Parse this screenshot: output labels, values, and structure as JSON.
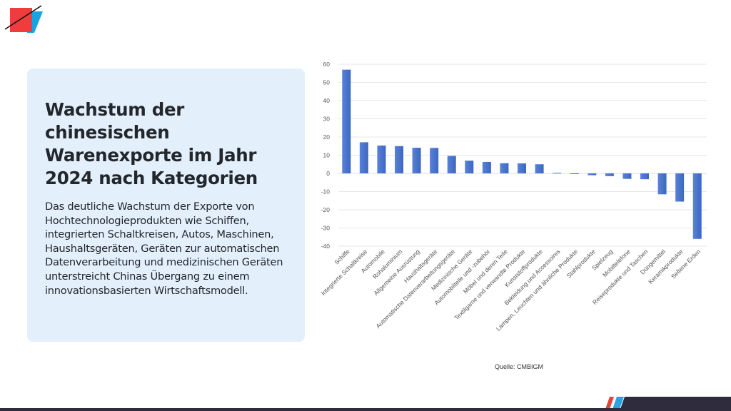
{
  "slide": {
    "title": "Wachstum der chinesischen Warenexporte im Jahr 2024 nach Kategorien",
    "description": "Das deutliche Wachstum der Exporte von Hochtechnologieprodukten wie Schiffen, integrierten Schaltkreisen, Autos, Maschinen, Haushaltsgeräten, Geräten zur automatischen Datenverarbeitung und medizinischen Geräten unterstreicht Chinas Übergang zu einem innovationsbasierten Wirtschaftsmodell.",
    "source": "Quelle: CMBIGM"
  },
  "colors": {
    "panel": "#e3f0fc",
    "bar": "#3a67c6",
    "bar_light": "#5a82d6",
    "logo_red": "#f03c3c",
    "logo_blue": "#1aa3e0",
    "footer_dark": "#2f2d3d"
  },
  "chart_data": {
    "type": "bar",
    "title": "",
    "xlabel": "",
    "ylabel": "",
    "ylim": [
      -40,
      60
    ],
    "yticks": [
      60,
      50,
      40,
      30,
      20,
      10,
      0,
      -10,
      -20,
      -30,
      -40
    ],
    "grid": true,
    "legend": "none",
    "categories": [
      "Schiffe",
      "Integrierte Schaltkreise",
      "Automobile",
      "Rohaluminium",
      "Allgemeine Ausrüstung",
      "Haushaltsgeräte",
      "Automatische Datenverarbeitungsgeräte",
      "Medizinische Geräte",
      "Automobilteile und -zubehör",
      "Möbel und deren Teile",
      "Textilgarne und verwandte Produkte",
      "Kunststoffprodukte",
      "Bekleidung und Accessoires",
      "Lampen, Leuchten und ähnliche Produkte",
      "Stahlprodukte",
      "Spielzeug",
      "Mobiltelefone",
      "Reiseprodukte und Taschen",
      "Düngemittel",
      "Keramikprodukte",
      "Seltene Erden"
    ],
    "values": [
      57,
      17.1,
      15.3,
      15.0,
      14.1,
      14.0,
      9.6,
      7.0,
      6.3,
      5.6,
      5.5,
      5.0,
      0.3,
      -0.1,
      -1.0,
      -1.5,
      -3.0,
      -3.2,
      -11.5,
      -15.5,
      -36.0
    ]
  }
}
